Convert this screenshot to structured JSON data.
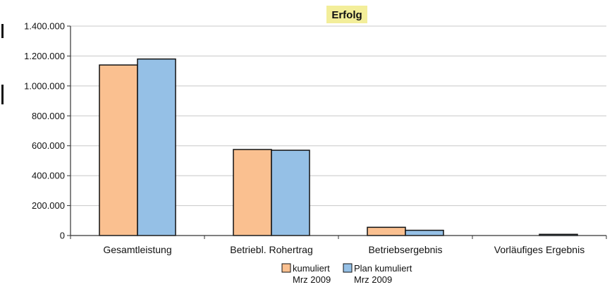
{
  "chart_data": {
    "type": "bar",
    "title": "Erfolg",
    "xlabel": "",
    "ylabel": "",
    "categories": [
      "Gesamtleistung",
      "Betriebl. Rohertrag",
      "Betriebsergebnis",
      "Vorläufiges Ergebnis"
    ],
    "series": [
      {
        "name": "kumuliert Mrz 2009",
        "name_lines": [
          "kumuliert",
          "Mrz 2009"
        ],
        "color": "#fac090",
        "values": [
          1140000,
          575000,
          55000,
          0
        ]
      },
      {
        "name": "Plan kumuliert Mrz 2009",
        "name_lines": [
          "Plan kumuliert",
          "Mrz 2009"
        ],
        "color": "#95c0e6",
        "values": [
          1180000,
          570000,
          35000,
          8000
        ]
      }
    ],
    "ylim": [
      0,
      1400000
    ],
    "y_ticks": [
      0,
      200000,
      400000,
      600000,
      800000,
      1000000,
      1200000,
      1400000
    ],
    "y_tick_labels": [
      "0",
      "200.000",
      "400.000",
      "600.000",
      "800.000",
      "1.000.000",
      "1.200.000",
      "1.400.000"
    ],
    "grid": true,
    "legend_position": "bottom-center"
  }
}
